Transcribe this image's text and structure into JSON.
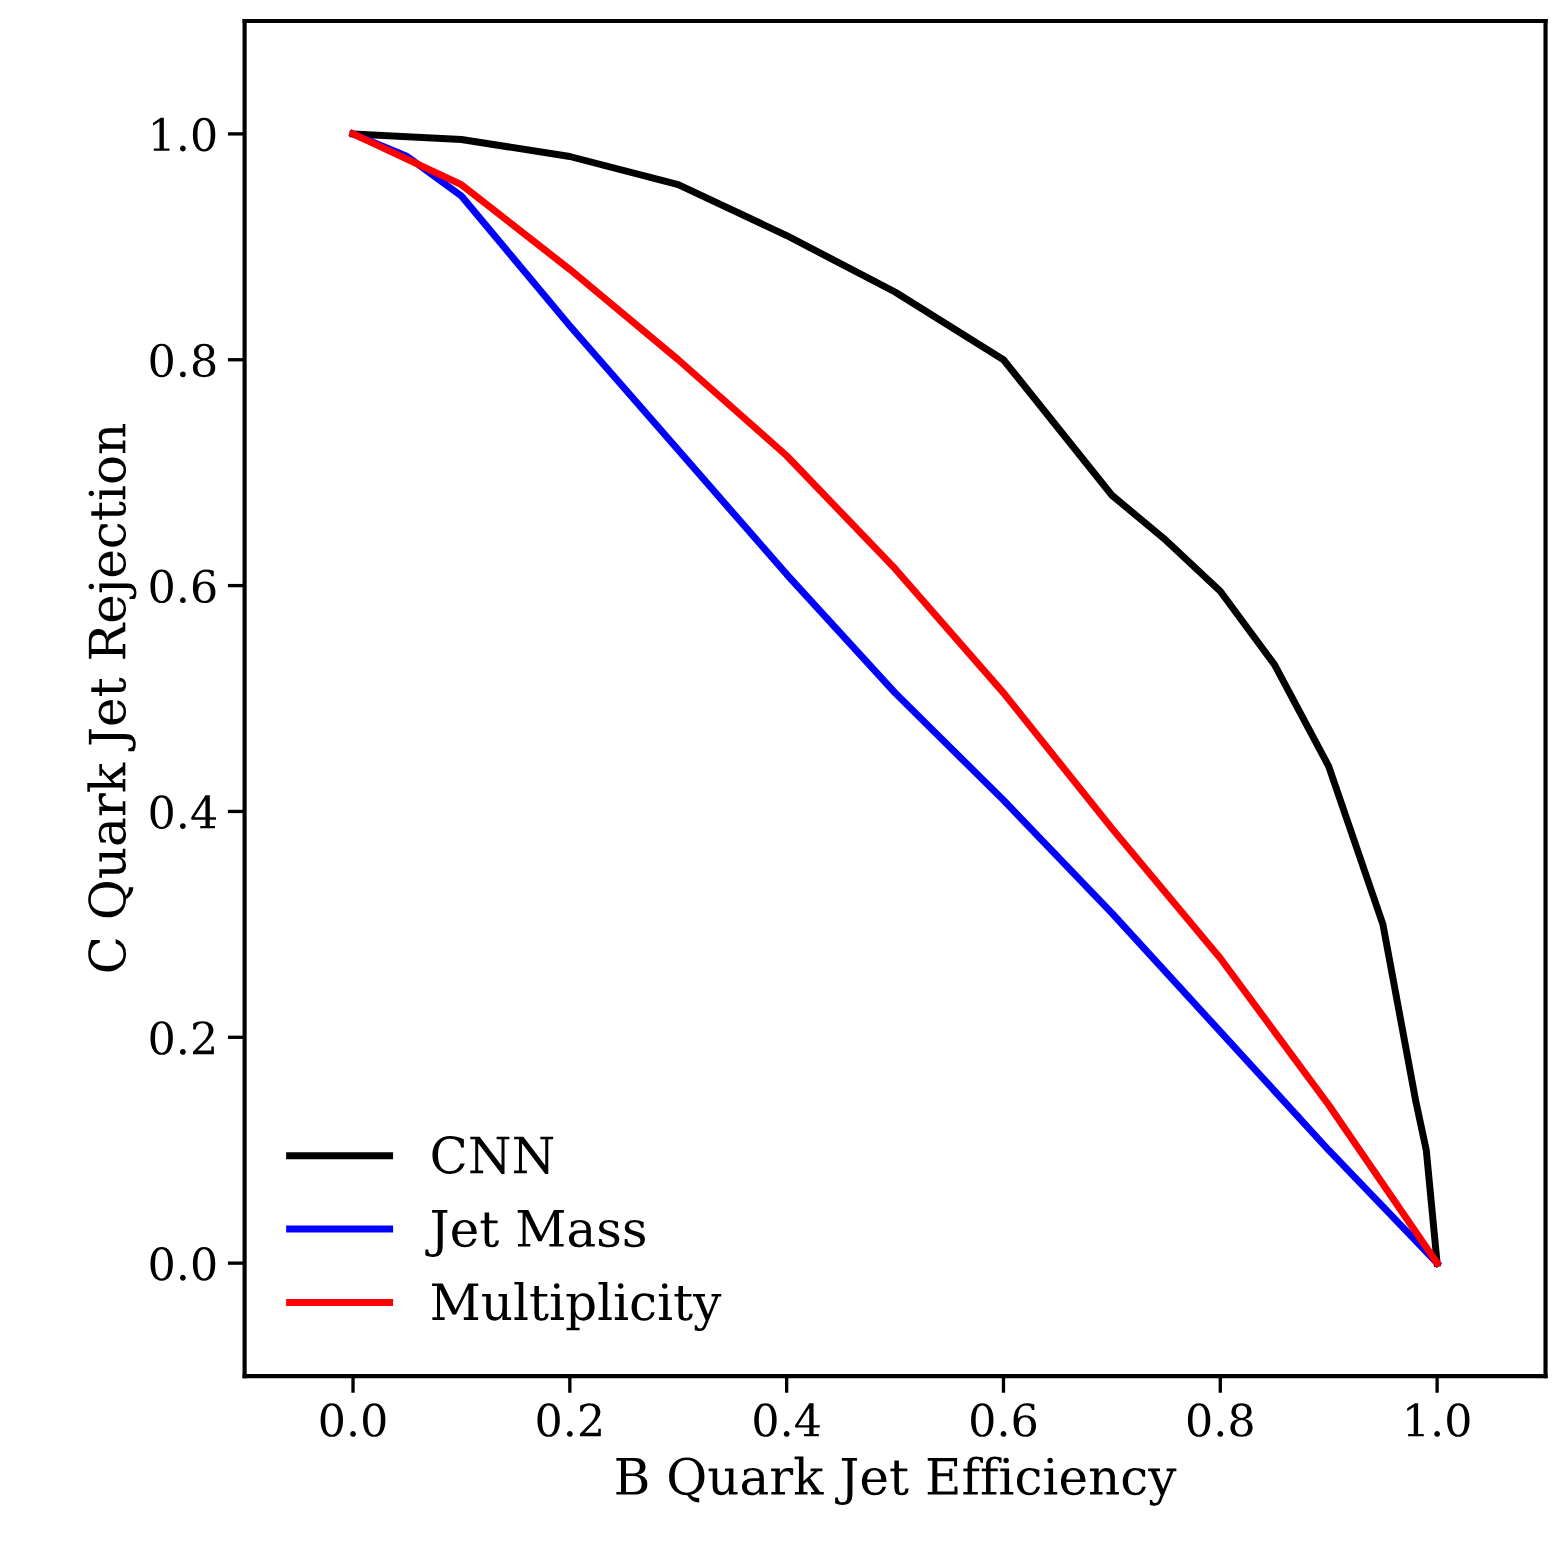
{
  "chart_data": {
    "type": "line",
    "xlabel": "B Quark Jet Efficiency",
    "ylabel": "C Quark Jet Rejection",
    "xlim": [
      -0.1,
      1.1
    ],
    "ylim": [
      -0.1,
      1.1
    ],
    "xticks": [
      {
        "value": 0,
        "label": "0.0"
      },
      {
        "value": 0.2,
        "label": "0.2"
      },
      {
        "value": 0.4,
        "label": "0.4"
      },
      {
        "value": 0.6,
        "label": "0.6"
      },
      {
        "value": 0.8,
        "label": "0.8"
      },
      {
        "value": 1,
        "label": "1.0"
      }
    ],
    "yticks": [
      {
        "value": 0,
        "label": "0.0"
      },
      {
        "value": 0.2,
        "label": "0.2"
      },
      {
        "value": 0.4,
        "label": "0.4"
      },
      {
        "value": 0.6,
        "label": "0.6"
      },
      {
        "value": 0.8,
        "label": "0.8"
      },
      {
        "value": 1,
        "label": "1.0"
      }
    ],
    "grid": false,
    "legend": "bottom left",
    "marker": "none",
    "line_style": "solid",
    "series": [
      {
        "name": "CNN",
        "color": "#000000",
        "x": [
          0,
          0.1,
          0.2,
          0.3,
          0.4,
          0.5,
          0.6,
          0.7,
          0.75,
          0.8,
          0.85,
          0.9,
          0.95,
          0.98,
          0.99,
          1.0
        ],
        "values": [
          1.0,
          0.995,
          0.98,
          0.955,
          0.91,
          0.86,
          0.8,
          0.68,
          0.64,
          0.595,
          0.53,
          0.44,
          0.3,
          0.145,
          0.1,
          0.0
        ]
      },
      {
        "name": "Jet Mass",
        "color": "#0000ff",
        "x": [
          0,
          0.05,
          0.1,
          0.2,
          0.3,
          0.4,
          0.5,
          0.6,
          0.7,
          0.8,
          0.9,
          1.0
        ],
        "values": [
          1.0,
          0.98,
          0.945,
          0.83,
          0.72,
          0.61,
          0.505,
          0.41,
          0.31,
          0.205,
          0.1,
          0.0
        ]
      },
      {
        "name": "Multiplicity",
        "color": "#ff0000",
        "x": [
          0,
          0.1,
          0.2,
          0.3,
          0.4,
          0.5,
          0.6,
          0.7,
          0.8,
          0.9,
          1.0
        ],
        "values": [
          1.0,
          0.955,
          0.88,
          0.8,
          0.715,
          0.615,
          0.505,
          0.385,
          0.27,
          0.14,
          0.0
        ]
      }
    ]
  }
}
